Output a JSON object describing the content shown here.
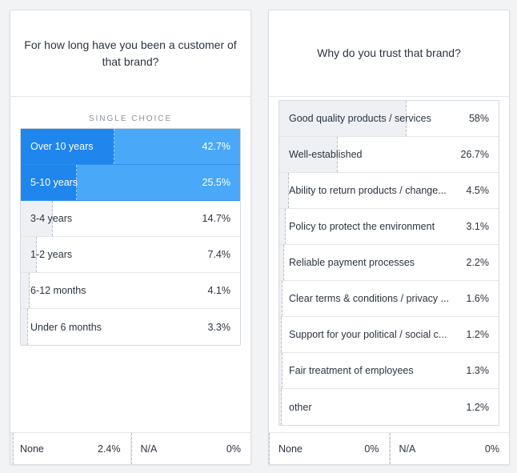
{
  "left_card": {
    "question": "For how long have you been a customer of that brand?",
    "type_label": "SINGLE CHOICE",
    "options": [
      {
        "label": "Over 10 years",
        "percent": "42.7%",
        "value": 42.7,
        "selected": true
      },
      {
        "label": "5-10 years",
        "percent": "25.5%",
        "value": 25.5,
        "selected": true
      },
      {
        "label": "3-4 years",
        "percent": "14.7%",
        "value": 14.7,
        "selected": false
      },
      {
        "label": "1-2 years",
        "percent": "7.4%",
        "value": 7.4,
        "selected": false
      },
      {
        "label": "6-12 months",
        "percent": "4.1%",
        "value": 4.1,
        "selected": false
      },
      {
        "label": "Under 6 months",
        "percent": "3.3%",
        "value": 3.3,
        "selected": false
      }
    ],
    "footer": [
      {
        "label": "None",
        "percent": "2.4%",
        "value": 2.4
      },
      {
        "label": "N/A",
        "percent": "0%",
        "value": 0
      }
    ]
  },
  "right_card": {
    "question": "Why do you trust that brand?",
    "options": [
      {
        "label": "Good quality products / services",
        "percent": "58%",
        "value": 58
      },
      {
        "label": "Well-established",
        "percent": "26.7%",
        "value": 26.7
      },
      {
        "label": "Ability to return products / change...",
        "percent": "4.5%",
        "value": 4.5
      },
      {
        "label": "Policy to protect the environment",
        "percent": "3.1%",
        "value": 3.1
      },
      {
        "label": "Reliable payment processes",
        "percent": "2.2%",
        "value": 2.2
      },
      {
        "label": "Clear terms & conditions / privacy ...",
        "percent": "1.6%",
        "value": 1.6
      },
      {
        "label": "Support for your political / social c...",
        "percent": "1.2%",
        "value": 1.2
      },
      {
        "label": "Fair treatment of employees",
        "percent": "1.3%",
        "value": 1.3
      },
      {
        "label": "other",
        "percent": "1.2%",
        "value": 1.2
      }
    ],
    "footer": [
      {
        "label": "None",
        "percent": "0%",
        "value": 0
      },
      {
        "label": "N/A",
        "percent": "0%",
        "value": 0
      }
    ]
  },
  "colors": {
    "selected_row": "#4aa8f8",
    "selected_fill": "#1f86ee",
    "bar_fill": "#eef0f3"
  }
}
